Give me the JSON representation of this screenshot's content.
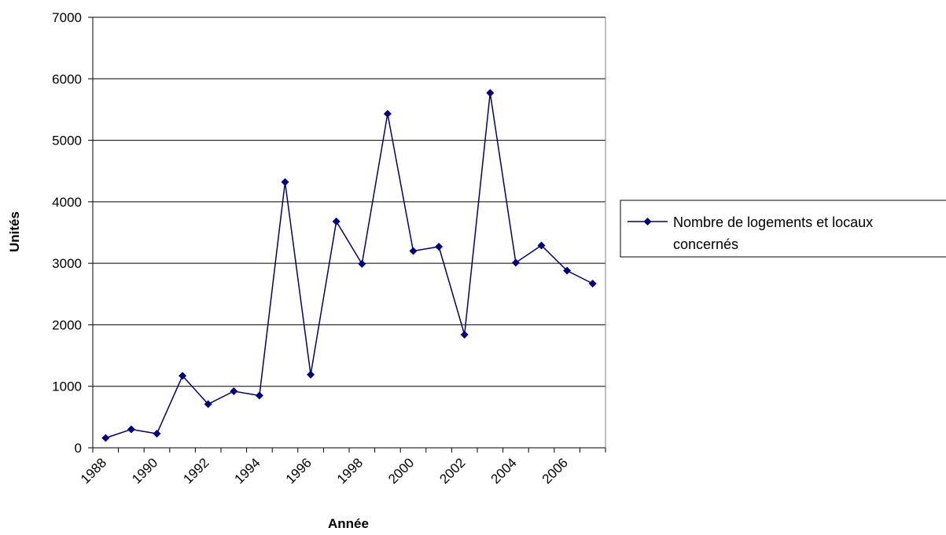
{
  "chart_data": {
    "type": "line",
    "title": "",
    "xlabel": "Année",
    "ylabel": "Unités",
    "x": [
      1988,
      1989,
      1990,
      1991,
      1992,
      1993,
      1994,
      1995,
      1996,
      1997,
      1998,
      1999,
      2000,
      2001,
      2002,
      2003,
      2004,
      2005,
      2006,
      2007
    ],
    "x_tick_labels": [
      "1988",
      "1990",
      "1992",
      "1994",
      "1996",
      "1998",
      "2000",
      "2002",
      "2004",
      "2006"
    ],
    "y_tick_labels": [
      "0",
      "1000",
      "2000",
      "3000",
      "4000",
      "5000",
      "6000",
      "7000"
    ],
    "ylim": [
      0,
      7000
    ],
    "grid": "horizontal",
    "legend_position": "right",
    "series": [
      {
        "name": "Nombre de logements et locaux concernés",
        "legend_lines": [
          "Nombre de logements et locaux",
          "concernés"
        ],
        "color": "#000080",
        "marker": "diamond",
        "values": [
          160,
          300,
          230,
          1170,
          710,
          920,
          850,
          4320,
          1190,
          3680,
          2990,
          5430,
          3200,
          3270,
          1840,
          5770,
          3010,
          3290,
          2880,
          2670
        ]
      }
    ]
  }
}
